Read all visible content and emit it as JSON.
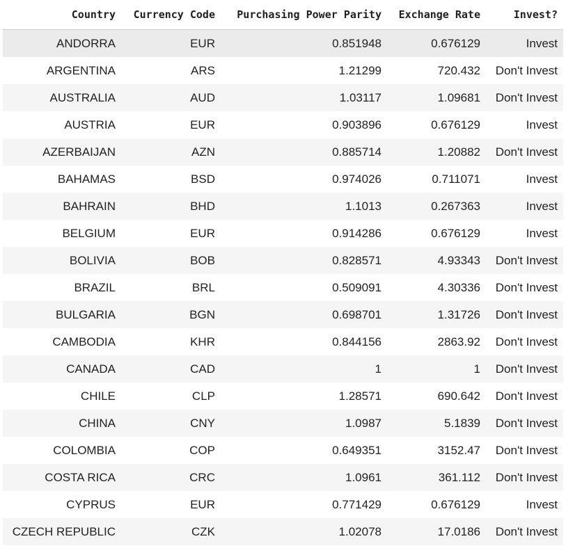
{
  "table": {
    "headers": [
      "Country",
      "Currency Code",
      "Purchasing Power Parity",
      "Exchange Rate",
      "Invest?"
    ],
    "rows": [
      [
        "ANDORRA",
        "EUR",
        "0.851948",
        "0.676129",
        "Invest"
      ],
      [
        "ARGENTINA",
        "ARS",
        "1.21299",
        "720.432",
        "Don't Invest"
      ],
      [
        "AUSTRALIA",
        "AUD",
        "1.03117",
        "1.09681",
        "Don't Invest"
      ],
      [
        "AUSTRIA",
        "EUR",
        "0.903896",
        "0.676129",
        "Invest"
      ],
      [
        "AZERBAIJAN",
        "AZN",
        "0.885714",
        "1.20882",
        "Don't Invest"
      ],
      [
        "BAHAMAS",
        "BSD",
        "0.974026",
        "0.711071",
        "Invest"
      ],
      [
        "BAHRAIN",
        "BHD",
        "1.1013",
        "0.267363",
        "Invest"
      ],
      [
        "BELGIUM",
        "EUR",
        "0.914286",
        "0.676129",
        "Invest"
      ],
      [
        "BOLIVIA",
        "BOB",
        "0.828571",
        "4.93343",
        "Don't Invest"
      ],
      [
        "BRAZIL",
        "BRL",
        "0.509091",
        "4.30336",
        "Don't Invest"
      ],
      [
        "BULGARIA",
        "BGN",
        "0.698701",
        "1.31726",
        "Don't Invest"
      ],
      [
        "CAMBODIA",
        "KHR",
        "0.844156",
        "2863.92",
        "Don't Invest"
      ],
      [
        "CANADA",
        "CAD",
        "1",
        "1",
        "Don't Invest"
      ],
      [
        "CHILE",
        "CLP",
        "1.28571",
        "690.642",
        "Don't Invest"
      ],
      [
        "CHINA",
        "CNY",
        "1.0987",
        "5.1839",
        "Don't Invest"
      ],
      [
        "COLOMBIA",
        "COP",
        "0.649351",
        "3152.47",
        "Don't Invest"
      ],
      [
        "COSTA RICA",
        "CRC",
        "1.0961",
        "361.112",
        "Don't Invest"
      ],
      [
        "CYPRUS",
        "EUR",
        "0.771429",
        "0.676129",
        "Invest"
      ],
      [
        "CZECH REPUBLIC",
        "CZK",
        "1.02078",
        "17.0186",
        "Don't Invest"
      ]
    ]
  }
}
